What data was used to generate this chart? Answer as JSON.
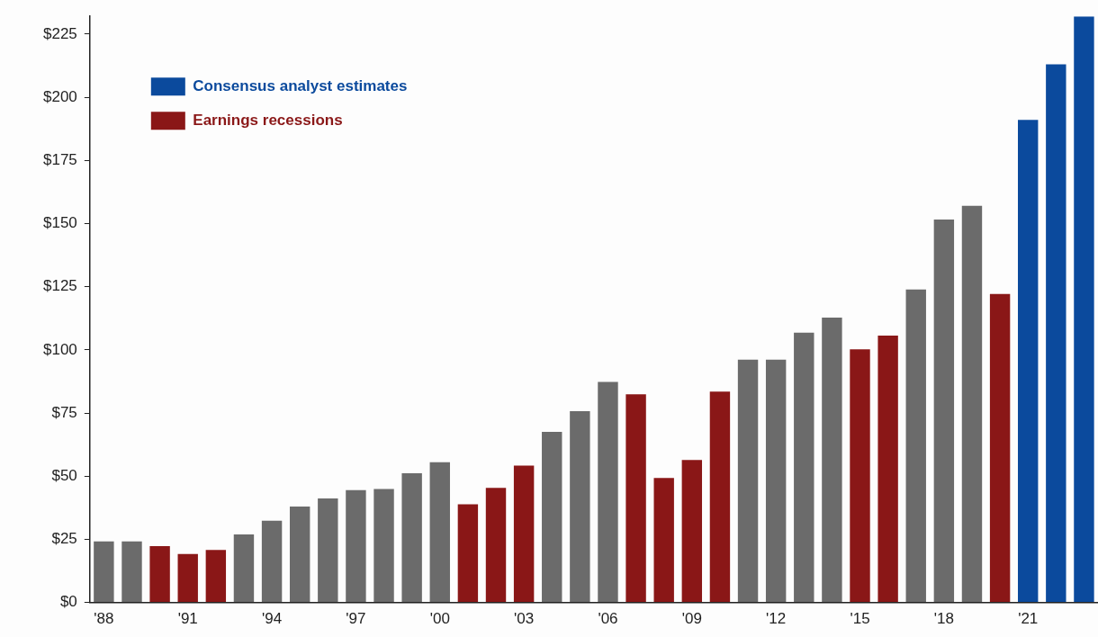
{
  "chart_data": {
    "type": "bar",
    "categories": [
      "'88",
      null,
      null,
      "'91",
      null,
      null,
      "'94",
      null,
      null,
      "'97",
      null,
      null,
      "'00",
      null,
      null,
      "'03",
      null,
      null,
      "'06",
      null,
      null,
      "'09",
      null,
      null,
      "'12",
      null,
      null,
      "'15",
      null,
      null,
      "'18",
      null,
      null,
      "'21",
      null,
      null
    ],
    "series": [
      {
        "color": "#6b6b6b",
        "values": [
          24.2,
          24.2,
          null,
          null,
          null,
          26.9,
          32.4,
          38,
          41.2,
          44.5,
          44.9,
          51.1,
          55.5,
          null,
          null,
          null,
          67.5,
          75.7,
          87.3,
          null,
          null,
          null,
          null,
          96.1,
          96.1,
          106.8,
          112.8,
          null,
          null,
          123.9,
          151.6,
          157,
          null,
          null,
          null,
          null
        ]
      },
      {
        "name": "Earnings recessions",
        "color": "#8a1717",
        "values": [
          null,
          null,
          22.3,
          19.2,
          20.8,
          null,
          null,
          null,
          null,
          null,
          null,
          null,
          null,
          38.9,
          45.4,
          54.2,
          null,
          null,
          null,
          82.4,
          49.3,
          56.4,
          83.5,
          null,
          null,
          null,
          null,
          100.2,
          105.6,
          null,
          null,
          null,
          122.1,
          null,
          null,
          null
        ]
      },
      {
        "name": "Consensus analyst estimates",
        "color": "#0b4a9d",
        "values": [
          null,
          null,
          null,
          null,
          null,
          null,
          null,
          null,
          null,
          null,
          null,
          null,
          null,
          null,
          null,
          null,
          null,
          null,
          null,
          null,
          null,
          null,
          null,
          null,
          null,
          null,
          null,
          null,
          null,
          null,
          null,
          null,
          null,
          191,
          213,
          232
        ]
      }
    ],
    "ylim": [
      0,
      232
    ],
    "yticks": [
      {
        "value": 0,
        "label": "$0"
      },
      {
        "value": 25,
        "label": "$25"
      },
      {
        "value": 50,
        "label": "$50"
      },
      {
        "value": 75,
        "label": "$75"
      },
      {
        "value": 100,
        "label": "$100"
      },
      {
        "value": 125,
        "label": "$125"
      },
      {
        "value": 150,
        "label": "$150"
      },
      {
        "value": 175,
        "label": "$175"
      },
      {
        "value": 200,
        "label": "$200"
      },
      {
        "value": 225,
        "label": "$225"
      }
    ],
    "grid": false,
    "legend": "top left"
  }
}
